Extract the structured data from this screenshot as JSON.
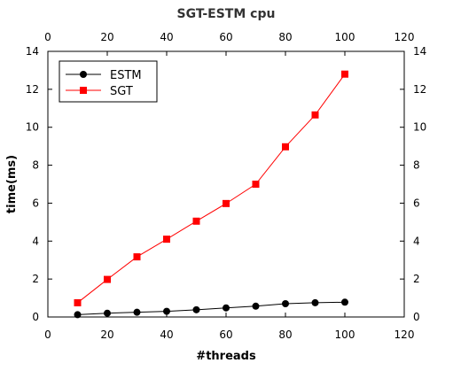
{
  "chart_data": {
    "type": "line",
    "title": "SGT-ESTM cpu",
    "xlabel": "#threads",
    "ylabel": "time(ms)",
    "xlim": [
      0,
      120
    ],
    "ylim": [
      0,
      14
    ],
    "xticks": [
      0,
      20,
      40,
      60,
      80,
      100,
      120
    ],
    "yticks": [
      0,
      2,
      4,
      6,
      8,
      10,
      12,
      14
    ],
    "x_tick_labels": [
      "0",
      "20",
      "40",
      "60",
      "80",
      "100",
      "120"
    ],
    "y_tick_labels": [
      "0",
      "2",
      "4",
      "6",
      "8",
      "10",
      "12",
      "14"
    ],
    "mirror_axes": true,
    "grid": false,
    "legend_position": "top-left",
    "x": [
      10,
      20,
      30,
      40,
      50,
      60,
      70,
      80,
      90,
      100
    ],
    "series": [
      {
        "name": "ESTM",
        "color": "#000000",
        "marker": "circle",
        "values": [
          0.12,
          0.2,
          0.25,
          0.3,
          0.38,
          0.48,
          0.57,
          0.7,
          0.75,
          0.78
        ]
      },
      {
        "name": "SGT",
        "color": "#ff0000",
        "marker": "square",
        "values": [
          0.75,
          1.98,
          3.17,
          4.1,
          5.05,
          5.98,
          7.0,
          8.97,
          10.65,
          12.8
        ]
      }
    ]
  }
}
